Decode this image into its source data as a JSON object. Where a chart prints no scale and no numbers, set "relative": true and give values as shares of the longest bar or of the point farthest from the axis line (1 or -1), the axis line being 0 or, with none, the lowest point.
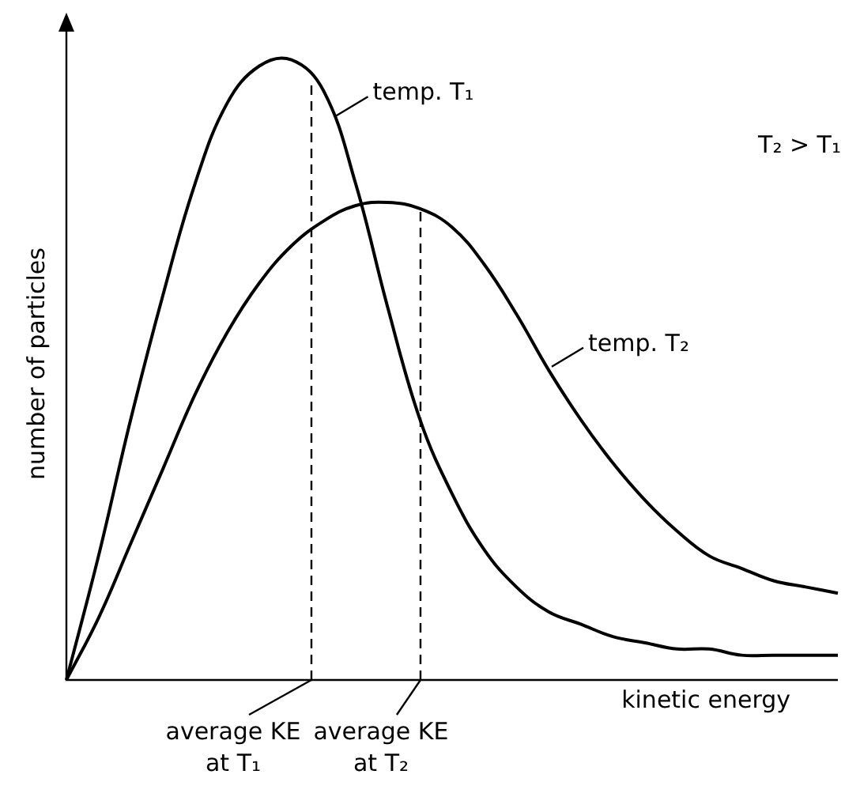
{
  "chart_data": {
    "type": "line",
    "relative": true,
    "xlabel": "kinetic energy",
    "ylabel": "number of particles",
    "categories": [
      null,
      null,
      null,
      null,
      null,
      null,
      null,
      null,
      null,
      null,
      null,
      null,
      null,
      null,
      null,
      null,
      null,
      null,
      null,
      null,
      null,
      null,
      null,
      null,
      null
    ],
    "series": [
      {
        "name": "temp. T₁",
        "color": "#000000",
        "values": [
          0,
          0.2,
          0.42,
          0.62,
          0.8,
          0.93,
          0.99,
          1,
          0.95,
          0.8,
          0.6,
          0.42,
          0.3,
          0.21,
          0.15,
          0.11,
          0.09,
          0.07,
          0.06,
          0.05,
          0.05,
          0.04,
          0.04,
          0.04,
          0.04
        ]
      },
      {
        "name": "temp. T₂",
        "color": "#000000",
        "values": [
          0,
          0.1,
          0.22,
          0.34,
          0.46,
          0.56,
          0.64,
          0.7,
          0.74,
          0.765,
          0.77,
          0.76,
          0.73,
          0.67,
          0.59,
          0.5,
          0.42,
          0.35,
          0.29,
          0.24,
          0.2,
          0.18,
          0.16,
          0.15,
          0.14
        ]
      }
    ],
    "annotations": [
      "T₂ > T₁",
      "average KE at T₁",
      "average KE at T₂"
    ],
    "legend": "right",
    "marker": "none",
    "line_style": "solid"
  }
}
